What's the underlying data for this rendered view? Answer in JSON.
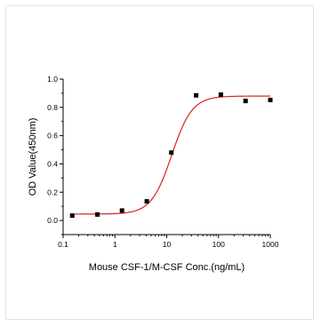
{
  "chart_data": {
    "type": "scatter",
    "title": "",
    "xlabel": "Mouse CSF-1/M-CSF Conc.(ng/mL)",
    "ylabel": "OD Value(450nm)",
    "xscale": "log",
    "xlim": [
      0.1,
      1000
    ],
    "ylim": [
      -0.1,
      1.0
    ],
    "x_ticks": [
      "0.1",
      "1",
      "10",
      "100",
      "1000"
    ],
    "y_ticks": [
      "0.0",
      "0.2",
      "0.4",
      "0.6",
      "0.8",
      "1.0"
    ],
    "grid": false,
    "series": [
      {
        "marker": "square",
        "color": "#000000",
        "x": [
          0.15,
          0.46,
          1.37,
          4.12,
          12.3,
          37,
          111,
          333,
          1000
        ],
        "y": [
          0.034,
          0.042,
          0.07,
          0.135,
          0.48,
          0.885,
          0.89,
          0.845,
          0.852
        ]
      }
    ],
    "fit_curve": {
      "type": "4PL",
      "color": "#e0201b",
      "bottom": 0.045,
      "top": 0.88,
      "ec50": 12.5,
      "hill": 2.2
    }
  }
}
